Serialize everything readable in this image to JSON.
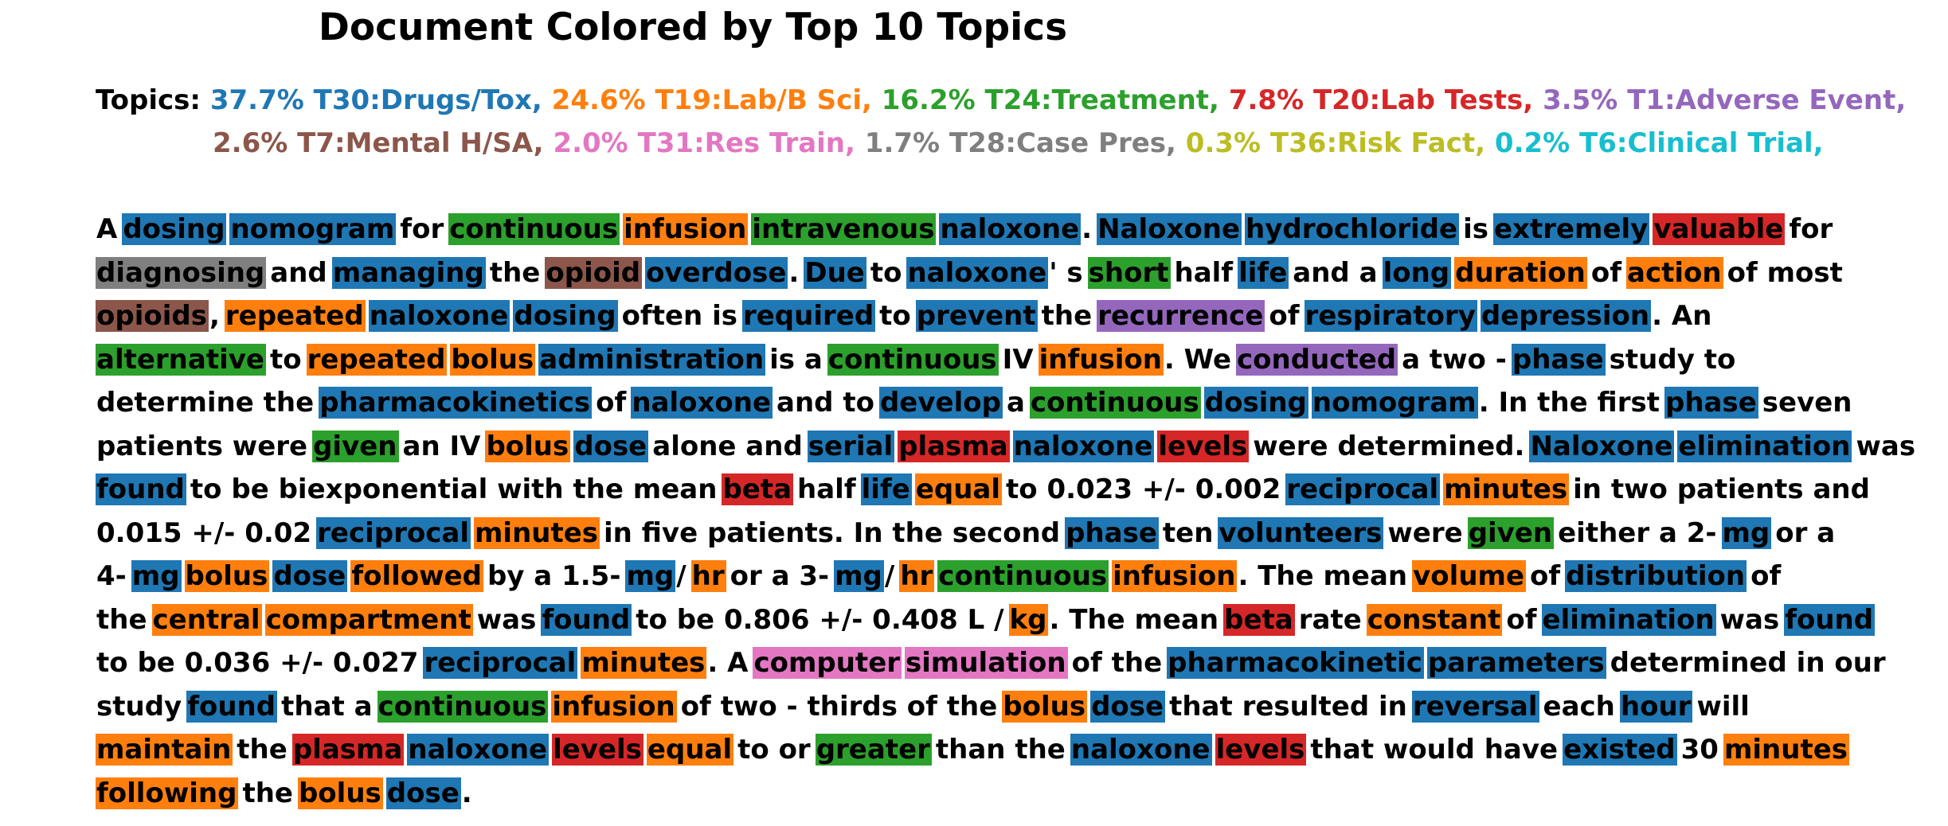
{
  "title": "Document Colored by Top 10 Topics",
  "legend_prefix": "Topics:",
  "topics": [
    {
      "id": "T30",
      "pct": "37.7%",
      "label": "T30:Drugs/Tox",
      "color": "#1f77b4"
    },
    {
      "id": "T19",
      "pct": "24.6%",
      "label": "T19:Lab/B Sci",
      "color": "#ff7f0e"
    },
    {
      "id": "T24",
      "pct": "16.2%",
      "label": "T24:Treatment",
      "color": "#2ca02c"
    },
    {
      "id": "T20",
      "pct": "7.8%",
      "label": "T20:Lab Tests",
      "color": "#d62728"
    },
    {
      "id": "T1",
      "pct": "3.5%",
      "label": "T1:Adverse Event",
      "color": "#9467bd"
    },
    {
      "id": "T7",
      "pct": "2.6%",
      "label": "T7:Mental H/SA",
      "color": "#8c564b"
    },
    {
      "id": "T31",
      "pct": "2.0%",
      "label": "T31:Res Train",
      "color": "#e377c2"
    },
    {
      "id": "T28",
      "pct": "1.7%",
      "label": "T28:Case Pres",
      "color": "#7f7f7f"
    },
    {
      "id": "T36",
      "pct": "0.3%",
      "label": "T36:Risk Fact",
      "color": "#bcbd22"
    },
    {
      "id": "T6",
      "pct": "0.2%",
      "label": "T6:Clinical Trial",
      "color": "#17becf"
    }
  ],
  "legend_lines": [
    [
      0,
      1,
      2,
      3,
      4
    ],
    [
      5,
      6,
      7,
      8,
      9
    ]
  ],
  "document_lines": [
    [
      [
        "A",
        null
      ],
      [
        "dosing",
        0
      ],
      [
        "nomogram",
        0
      ],
      [
        "for",
        null
      ],
      [
        "continuous",
        2
      ],
      [
        "infusion",
        1
      ],
      [
        "intravenous",
        2
      ],
      [
        "naloxone",
        0
      ],
      [
        ".",
        null
      ],
      [
        "Naloxone",
        0
      ],
      [
        "hydrochloride",
        0
      ],
      [
        "is",
        null
      ],
      [
        "extremely",
        0
      ],
      [
        "valuable",
        3
      ],
      [
        "for",
        null
      ]
    ],
    [
      [
        "diagnosing",
        7
      ],
      [
        "and",
        null
      ],
      [
        "managing",
        0
      ],
      [
        "the",
        null
      ],
      [
        "opioid",
        5
      ],
      [
        "overdose",
        0
      ],
      [
        ".",
        null
      ],
      [
        "Due",
        0
      ],
      [
        "to",
        null
      ],
      [
        "naloxone",
        0
      ],
      [
        "' s",
        null
      ],
      [
        "short",
        2
      ],
      [
        "half",
        null
      ],
      [
        "life",
        0
      ],
      [
        "and a",
        null
      ],
      [
        "long",
        0
      ],
      [
        "duration",
        1
      ],
      [
        "of",
        null
      ],
      [
        "action",
        1
      ],
      [
        "of most",
        null
      ]
    ],
    [
      [
        "opioids",
        5
      ],
      [
        ",",
        null
      ],
      [
        "repeated",
        1
      ],
      [
        "naloxone",
        0
      ],
      [
        "dosing",
        0
      ],
      [
        "often is",
        null
      ],
      [
        "required",
        0
      ],
      [
        "to",
        null
      ],
      [
        "prevent",
        0
      ],
      [
        "the",
        null
      ],
      [
        "recurrence",
        4
      ],
      [
        "of",
        null
      ],
      [
        "respiratory",
        0
      ],
      [
        "depression",
        0
      ],
      [
        ". An",
        null
      ]
    ],
    [
      [
        "alternative",
        2
      ],
      [
        "to",
        null
      ],
      [
        "repeated",
        1
      ],
      [
        "bolus",
        1
      ],
      [
        "administration",
        0
      ],
      [
        "is a",
        null
      ],
      [
        "continuous",
        2
      ],
      [
        "IV",
        null
      ],
      [
        "infusion",
        1
      ],
      [
        ". We",
        null
      ],
      [
        "conducted",
        4
      ],
      [
        "a two - ",
        null
      ],
      [
        "phase",
        0
      ],
      [
        "study to",
        null
      ]
    ],
    [
      [
        "determine the",
        null
      ],
      [
        "pharmacokinetics",
        0
      ],
      [
        "of",
        null
      ],
      [
        "naloxone",
        0
      ],
      [
        "and to",
        null
      ],
      [
        "develop",
        0
      ],
      [
        "a",
        null
      ],
      [
        "continuous",
        2
      ],
      [
        "dosing",
        0
      ],
      [
        "nomogram",
        0
      ],
      [
        ". In the first",
        null
      ],
      [
        "phase",
        0
      ],
      [
        "seven",
        null
      ]
    ],
    [
      [
        "patients were",
        null
      ],
      [
        "given",
        2
      ],
      [
        "an IV",
        null
      ],
      [
        "bolus",
        1
      ],
      [
        "dose",
        0
      ],
      [
        "alone and",
        null
      ],
      [
        "serial",
        0
      ],
      [
        "plasma",
        3
      ],
      [
        "naloxone",
        0
      ],
      [
        "levels",
        3
      ],
      [
        "were determined.",
        null
      ],
      [
        "Naloxone",
        0
      ],
      [
        "elimination",
        0
      ],
      [
        "was",
        null
      ]
    ],
    [
      [
        "found",
        0
      ],
      [
        "to be biexponential with the mean",
        null
      ],
      [
        "beta",
        3
      ],
      [
        "half",
        null
      ],
      [
        "life",
        0
      ],
      [
        "equal",
        1
      ],
      [
        "to 0.023 +/- 0.002",
        null
      ],
      [
        "reciprocal",
        0
      ],
      [
        "minutes",
        1
      ],
      [
        "in two patients and",
        null
      ]
    ],
    [
      [
        "0.015 +/- 0.02",
        null
      ],
      [
        "reciprocal",
        0
      ],
      [
        "minutes",
        1
      ],
      [
        "in five patients. In the second",
        null
      ],
      [
        "phase",
        0
      ],
      [
        "ten",
        null
      ],
      [
        "volunteers",
        0
      ],
      [
        "were",
        null
      ],
      [
        "given",
        2
      ],
      [
        "either a 2-",
        null
      ],
      [
        "mg",
        0
      ],
      [
        "or a",
        null
      ]
    ],
    [
      [
        "4-",
        null
      ],
      [
        "mg",
        0
      ],
      [
        "bolus",
        1
      ],
      [
        "dose",
        0
      ],
      [
        "followed",
        1
      ],
      [
        "by a 1.5-",
        null
      ],
      [
        "mg",
        0
      ],
      [
        "/",
        null
      ],
      [
        "hr",
        1
      ],
      [
        "or a 3-",
        null
      ],
      [
        "mg",
        0
      ],
      [
        "/",
        null
      ],
      [
        "hr",
        1
      ],
      [
        "continuous",
        2
      ],
      [
        "infusion",
        1
      ],
      [
        ". The mean",
        null
      ],
      [
        "volume",
        1
      ],
      [
        "of",
        null
      ],
      [
        "distribution",
        0
      ],
      [
        "of",
        null
      ]
    ],
    [
      [
        "the",
        null
      ],
      [
        "central",
        1
      ],
      [
        "compartment",
        1
      ],
      [
        "was",
        null
      ],
      [
        "found",
        0
      ],
      [
        "to be 0.806 +/- 0.408 L /",
        null
      ],
      [
        "kg",
        1
      ],
      [
        ". The mean",
        null
      ],
      [
        "beta",
        3
      ],
      [
        "rate",
        null
      ],
      [
        "constant",
        1
      ],
      [
        "of",
        null
      ],
      [
        "elimination",
        0
      ],
      [
        "was",
        null
      ],
      [
        "found",
        0
      ]
    ],
    [
      [
        "to be 0.036 +/- 0.027",
        null
      ],
      [
        "reciprocal",
        0
      ],
      [
        "minutes",
        1
      ],
      [
        ". A",
        null
      ],
      [
        "computer",
        6
      ],
      [
        "simulation",
        6
      ],
      [
        "of the",
        null
      ],
      [
        "pharmacokinetic",
        0
      ],
      [
        "parameters",
        0
      ],
      [
        "determined in our",
        null
      ]
    ],
    [
      [
        "study",
        null
      ],
      [
        "found",
        0
      ],
      [
        "that a",
        null
      ],
      [
        "continuous",
        2
      ],
      [
        "infusion",
        1
      ],
      [
        "of two - thirds of the",
        null
      ],
      [
        "bolus",
        1
      ],
      [
        "dose",
        0
      ],
      [
        "that resulted in",
        null
      ],
      [
        "reversal",
        0
      ],
      [
        "each",
        null
      ],
      [
        "hour",
        0
      ],
      [
        "will",
        null
      ]
    ],
    [
      [
        "maintain",
        1
      ],
      [
        "the",
        null
      ],
      [
        "plasma",
        3
      ],
      [
        "naloxone",
        0
      ],
      [
        "levels",
        3
      ],
      [
        "equal",
        1
      ],
      [
        "to or",
        null
      ],
      [
        "greater",
        2
      ],
      [
        "than the",
        null
      ],
      [
        "naloxone",
        0
      ],
      [
        "levels",
        3
      ],
      [
        "that would have",
        null
      ],
      [
        "existed",
        0
      ],
      [
        "30",
        null
      ],
      [
        "minutes",
        1
      ]
    ],
    [
      [
        "following",
        1
      ],
      [
        "the",
        null
      ],
      [
        "bolus",
        1
      ],
      [
        "dose",
        0
      ],
      [
        ".",
        null
      ]
    ]
  ]
}
